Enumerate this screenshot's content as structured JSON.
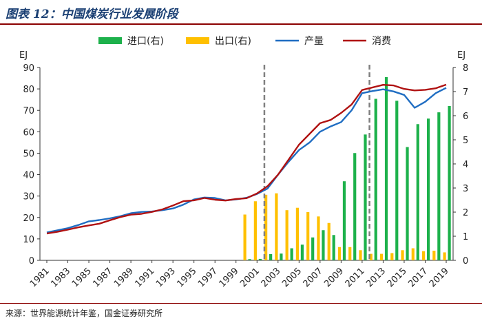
{
  "header": {
    "title": "图表 12：中国煤炭行业发展阶段"
  },
  "footer": {
    "source": "来源：世界能源统计年鉴，国金证券研究所"
  },
  "colors": {
    "import": "#1db14b",
    "export": "#ffc000",
    "production": "#1f6dc2",
    "consumption": "#b01212",
    "divider": "#7f7f7f",
    "accent": "#8b0000"
  },
  "chart_data": {
    "type": "bar+line",
    "left_axis": {
      "unit": "EJ",
      "min": 0,
      "max": 90,
      "ticks": [
        0,
        10,
        20,
        30,
        40,
        50,
        60,
        70,
        80,
        90
      ]
    },
    "right_axis": {
      "unit": "EJ",
      "min": 0,
      "max": 8,
      "ticks": [
        0,
        1,
        2,
        3,
        4,
        5,
        6,
        7,
        8
      ]
    },
    "years": [
      1981,
      1982,
      1983,
      1984,
      1985,
      1986,
      1987,
      1988,
      1989,
      1990,
      1991,
      1992,
      1993,
      1994,
      1995,
      1996,
      1997,
      1998,
      1999,
      2000,
      2001,
      2002,
      2003,
      2004,
      2005,
      2006,
      2007,
      2008,
      2009,
      2010,
      2011,
      2012,
      2013,
      2014,
      2015,
      2016,
      2017,
      2018,
      2019
    ],
    "x_tick_labels": [
      "1981",
      "1983",
      "1985",
      "1987",
      "1989",
      "1991",
      "1993",
      "1995",
      "1997",
      "1999",
      "2001",
      "2003",
      "2005",
      "2007",
      "2009",
      "2011",
      "2013",
      "2015",
      "2017",
      "2019"
    ],
    "series": [
      {
        "name": "进口(右)",
        "kind": "bar",
        "axis": "right",
        "values": [
          0,
          0,
          0,
          0,
          0,
          0,
          0,
          0,
          0,
          0,
          0,
          0,
          0,
          0,
          0,
          0,
          0,
          0,
          0,
          0.05,
          0.06,
          0.26,
          0.28,
          0.5,
          0.65,
          0.95,
          1.25,
          1.05,
          3.28,
          4.45,
          5.22,
          6.7,
          7.6,
          6.62,
          4.7,
          5.65,
          5.88,
          6.14,
          6.4
        ]
      },
      {
        "name": "出口(右)",
        "kind": "bar",
        "axis": "right",
        "values": [
          0,
          0,
          0,
          0,
          0,
          0,
          0,
          0,
          0,
          0,
          0,
          0,
          0,
          0,
          0,
          0,
          0,
          0,
          0,
          1.9,
          2.45,
          2.72,
          2.78,
          2.08,
          2.18,
          2.0,
          1.82,
          1.55,
          0.55,
          0.55,
          0.42,
          0.27,
          0.27,
          0.3,
          0.42,
          0.5,
          0.38,
          0.4,
          0.33
        ]
      },
      {
        "name": "产量",
        "kind": "line",
        "axis": "left",
        "values": [
          13,
          14,
          15,
          16.5,
          18.2,
          18.8,
          19.6,
          20.6,
          22,
          22.6,
          22.8,
          23.4,
          24.2,
          26,
          28.4,
          29.3,
          29.1,
          28,
          28.4,
          29.2,
          31,
          33.5,
          40,
          46,
          51.5,
          55,
          60,
          62.5,
          64.5,
          70,
          78,
          79,
          79.8,
          78.8,
          77.2,
          71.2,
          74,
          78,
          80.5
        ]
      },
      {
        "name": "消费",
        "kind": "line",
        "axis": "left",
        "values": [
          12.5,
          13.3,
          14.3,
          15.4,
          16.3,
          17.1,
          18.7,
          20.2,
          21.3,
          21.7,
          22.6,
          23.8,
          25.6,
          27.6,
          28,
          29.1,
          28.3,
          27.9,
          28.6,
          29,
          31.2,
          34.6,
          40,
          47,
          54,
          59,
          64,
          65.5,
          68.8,
          72.7,
          79.5,
          80.7,
          81.9,
          81.6,
          80,
          79.3,
          79.6,
          80.3,
          82
        ]
      }
    ],
    "dividers": [
      2001.7,
      2011.7
    ],
    "legend_position": "top"
  }
}
